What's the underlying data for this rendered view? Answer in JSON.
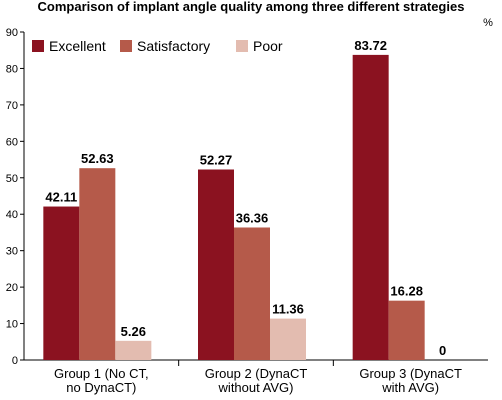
{
  "chart_data": {
    "type": "bar",
    "title": "Comparison of implant angle quality among three different strategies",
    "ylabel": "%",
    "xlabel": "",
    "ylim": [
      0,
      90
    ],
    "yticks": [
      0,
      10,
      20,
      30,
      40,
      50,
      60,
      70,
      80,
      90
    ],
    "grid": false,
    "legend_position": "top-left",
    "categories": [
      [
        "Group 1 (No CT,",
        "no DynaCT)"
      ],
      [
        "Group 2 (DynaCT",
        "without AVG)"
      ],
      [
        "Group 3 (DynaCT",
        "with AVG)"
      ]
    ],
    "series": [
      {
        "name": "Excellent",
        "color": "#8b1220",
        "values": [
          42.11,
          52.27,
          83.72
        ],
        "labels": [
          "42.11",
          "52.27",
          "83.72"
        ]
      },
      {
        "name": "Satisfactory",
        "color": "#b55a4a",
        "values": [
          52.63,
          36.36,
          16.28
        ],
        "labels": [
          "52.63",
          "36.36",
          "16.28"
        ]
      },
      {
        "name": "Poor",
        "color": "#e3bcb0",
        "values": [
          5.26,
          11.36,
          0
        ],
        "labels": [
          "5.26",
          "11.36",
          "0"
        ]
      }
    ]
  }
}
